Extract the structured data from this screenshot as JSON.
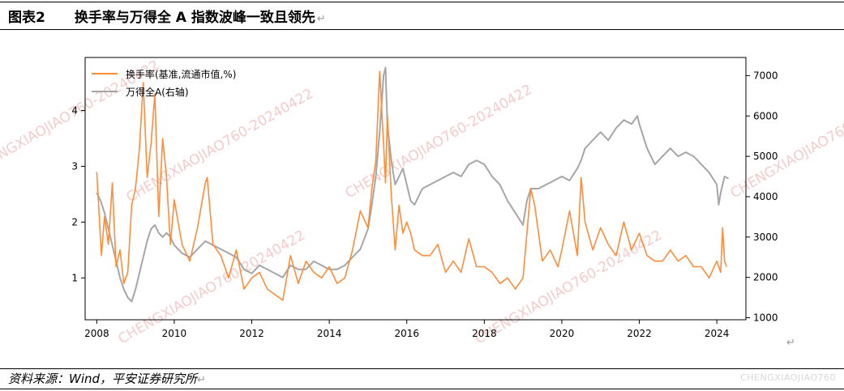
{
  "header": {
    "figure_label": "图表2",
    "title": "换手率与万得全 A 指数波峰一致且领先"
  },
  "footer": {
    "source": "资料来源：Wind，平安证券研究所",
    "watermark_text": "CHENGXIAOJIAO760"
  },
  "diagonal_watermark": "CHENGXIAOJIAO760-20240422",
  "colors": {
    "turnover": "#FF8C3A",
    "index": "#A6A6A6",
    "watermark": "#F4C2C2"
  },
  "chart_data": {
    "type": "line",
    "title": "",
    "xlabel": "",
    "x_ticks": [
      "2008",
      "2010",
      "2012",
      "2014",
      "2016",
      "2018",
      "2020",
      "2022",
      "2024"
    ],
    "y_left": {
      "ticks": [
        1,
        2,
        3,
        4
      ],
      "range": [
        0.25,
        4.95
      ]
    },
    "y_right": {
      "ticks": [
        1000,
        2000,
        3000,
        4000,
        5000,
        6000,
        7000
      ],
      "range": [
        950,
        7450
      ]
    },
    "x_range": [
      2007.7,
      2024.75
    ],
    "legend": {
      "position": "top-left"
    },
    "series": [
      {
        "name": "换手率(基准,流通市值,%)",
        "axis": "left",
        "color": "#FF8C3A",
        "x": [
          2008.0,
          2008.05,
          2008.12,
          2008.2,
          2008.3,
          2008.4,
          2008.5,
          2008.6,
          2008.7,
          2008.8,
          2008.9,
          2009.0,
          2009.1,
          2009.2,
          2009.3,
          2009.4,
          2009.5,
          2009.6,
          2009.7,
          2009.8,
          2009.9,
          2010.0,
          2010.2,
          2010.4,
          2010.6,
          2010.8,
          2010.85,
          2011.0,
          2011.2,
          2011.4,
          2011.6,
          2011.8,
          2012.0,
          2012.2,
          2012.4,
          2012.6,
          2012.8,
          2013.0,
          2013.2,
          2013.4,
          2013.6,
          2013.8,
          2014.0,
          2014.2,
          2014.4,
          2014.6,
          2014.8,
          2015.0,
          2015.1,
          2015.2,
          2015.3,
          2015.4,
          2015.45,
          2015.5,
          2015.6,
          2015.7,
          2015.8,
          2015.9,
          2016.0,
          2016.1,
          2016.2,
          2016.4,
          2016.6,
          2016.8,
          2017.0,
          2017.2,
          2017.4,
          2017.6,
          2017.8,
          2018.0,
          2018.2,
          2018.4,
          2018.6,
          2018.8,
          2019.0,
          2019.1,
          2019.2,
          2019.3,
          2019.5,
          2019.7,
          2019.9,
          2020.0,
          2020.2,
          2020.4,
          2020.5,
          2020.6,
          2020.8,
          2021.0,
          2021.2,
          2021.4,
          2021.6,
          2021.8,
          2022.0,
          2022.2,
          2022.4,
          2022.6,
          2022.8,
          2023.0,
          2023.2,
          2023.4,
          2023.6,
          2023.8,
          2024.0,
          2024.1,
          2024.15,
          2024.2,
          2024.25
        ],
        "values": [
          2.9,
          2.3,
          1.4,
          2.1,
          1.6,
          2.7,
          1.2,
          1.5,
          0.9,
          1.1,
          2.3,
          2.6,
          3.3,
          4.5,
          2.8,
          3.4,
          4.3,
          2.1,
          3.5,
          2.8,
          1.6,
          2.4,
          1.6,
          1.3,
          1.9,
          2.7,
          2.8,
          1.6,
          1.4,
          1.0,
          1.5,
          0.8,
          1.0,
          1.1,
          0.8,
          0.7,
          0.6,
          1.4,
          0.9,
          1.3,
          1.1,
          1.0,
          1.2,
          0.9,
          1.0,
          1.5,
          2.2,
          1.9,
          2.6,
          3.1,
          4.7,
          3.4,
          2.7,
          3.9,
          2.5,
          1.5,
          2.3,
          1.8,
          2.0,
          1.8,
          1.5,
          1.4,
          1.4,
          1.6,
          1.1,
          1.3,
          1.1,
          1.7,
          1.2,
          1.2,
          1.1,
          0.9,
          1.0,
          0.8,
          1.0,
          1.8,
          2.6,
          2.3,
          1.3,
          1.5,
          1.2,
          1.5,
          2.2,
          1.4,
          2.8,
          2.0,
          1.5,
          1.9,
          1.6,
          1.4,
          2.0,
          1.5,
          1.8,
          1.4,
          1.3,
          1.3,
          1.5,
          1.3,
          1.4,
          1.2,
          1.2,
          1.0,
          1.3,
          1.1,
          1.9,
          1.3,
          1.2
        ]
      },
      {
        "name": "万得全A(右轴)",
        "axis": "right",
        "color": "#A6A6A6",
        "x": [
          2008.0,
          2008.1,
          2008.2,
          2008.3,
          2008.4,
          2008.5,
          2008.6,
          2008.7,
          2008.8,
          2008.9,
          2009.0,
          2009.1,
          2009.2,
          2009.3,
          2009.4,
          2009.5,
          2009.6,
          2009.7,
          2009.8,
          2009.9,
          2010.0,
          2010.2,
          2010.4,
          2010.6,
          2010.8,
          2011.0,
          2011.2,
          2011.4,
          2011.6,
          2011.8,
          2012.0,
          2012.2,
          2012.4,
          2012.6,
          2012.8,
          2013.0,
          2013.2,
          2013.4,
          2013.6,
          2013.8,
          2014.0,
          2014.2,
          2014.4,
          2014.6,
          2014.8,
          2015.0,
          2015.1,
          2015.2,
          2015.3,
          2015.4,
          2015.45,
          2015.5,
          2015.6,
          2015.7,
          2015.8,
          2015.9,
          2016.0,
          2016.1,
          2016.2,
          2016.4,
          2016.6,
          2016.8,
          2017.0,
          2017.2,
          2017.4,
          2017.6,
          2017.8,
          2018.0,
          2018.2,
          2018.4,
          2018.6,
          2018.8,
          2019.0,
          2019.1,
          2019.2,
          2019.4,
          2019.6,
          2019.8,
          2020.0,
          2020.2,
          2020.4,
          2020.5,
          2020.6,
          2020.8,
          2021.0,
          2021.2,
          2021.4,
          2021.6,
          2021.8,
          2021.95,
          2022.0,
          2022.2,
          2022.4,
          2022.6,
          2022.8,
          2023.0,
          2023.2,
          2023.4,
          2023.6,
          2023.8,
          2024.0,
          2024.05,
          2024.1,
          2024.2,
          2024.3
        ],
        "values": [
          4100,
          3900,
          3600,
          3200,
          2800,
          2400,
          2000,
          1700,
          1500,
          1400,
          1700,
          2100,
          2500,
          2900,
          3200,
          3300,
          3100,
          3000,
          3100,
          3000,
          2800,
          2600,
          2500,
          2700,
          2900,
          2800,
          2700,
          2600,
          2500,
          2200,
          2100,
          2300,
          2200,
          2100,
          2000,
          2300,
          2200,
          2200,
          2400,
          2300,
          2200,
          2200,
          2300,
          2500,
          2700,
          3200,
          3800,
          4500,
          5600,
          7000,
          7200,
          5800,
          4900,
          4300,
          4500,
          4700,
          4300,
          3900,
          3800,
          4200,
          4300,
          4400,
          4500,
          4600,
          4500,
          4800,
          4900,
          4800,
          4500,
          4300,
          3900,
          3600,
          3300,
          3900,
          4200,
          4200,
          4300,
          4400,
          4500,
          4400,
          4700,
          4900,
          5200,
          5400,
          5600,
          5400,
          5700,
          5900,
          5800,
          6000,
          5800,
          5200,
          4800,
          5000,
          5200,
          5000,
          5100,
          5000,
          4800,
          4600,
          4300,
          3800,
          4100,
          4500,
          4450
        ]
      }
    ]
  }
}
